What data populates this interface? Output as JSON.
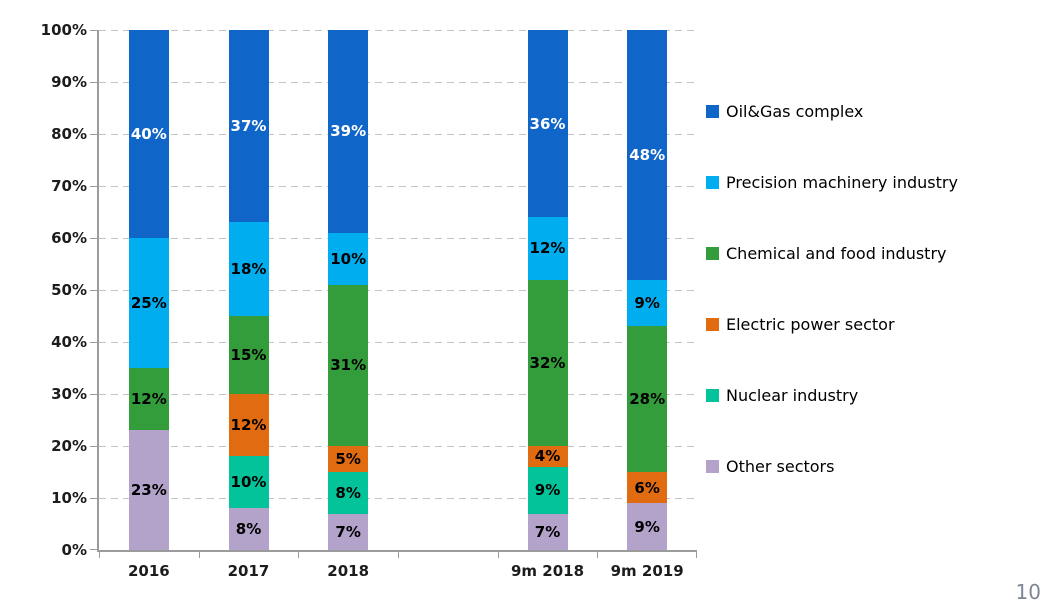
{
  "page_number": "10",
  "chart_data": {
    "type": "bar",
    "stacked": true,
    "title": "",
    "legend_position": "right",
    "grid": "dashed-horizontal",
    "categories": [
      "2016",
      "2017",
      "2018",
      "",
      "9m 2018",
      "9m 2019"
    ],
    "y_axis": {
      "min": 0,
      "max": 100,
      "tick_step": 10,
      "ticks": [
        "0%",
        "10%",
        "20%",
        "30%",
        "40%",
        "50%",
        "60%",
        "70%",
        "80%",
        "90%",
        "100%"
      ]
    },
    "data_label_suffix": "%",
    "series": [
      {
        "name": "Oil&Gas complex",
        "color": "#1065C8",
        "label_color": "#FFFFFF",
        "values": [
          40,
          37,
          39,
          null,
          36,
          48
        ]
      },
      {
        "name": "Precision machinery industry",
        "color": "#00AEEF",
        "label_color": "#000000",
        "values": [
          25,
          18,
          10,
          null,
          12,
          9
        ]
      },
      {
        "name": "Chemical and food industry",
        "color": "#339C3B",
        "label_color": "#000000",
        "values": [
          12,
          15,
          31,
          null,
          32,
          28
        ]
      },
      {
        "name": "Electric power sector",
        "color": "#E16B10",
        "label_color": "#000000",
        "values": [
          0,
          12,
          5,
          null,
          4,
          6
        ]
      },
      {
        "name": "Nuclear industry",
        "color": "#02C39A",
        "label_color": "#000000",
        "values": [
          0,
          10,
          8,
          null,
          9,
          0
        ]
      },
      {
        "name": "Other sectors",
        "color": "#B3A2C9",
        "label_color": "#000000",
        "values": [
          23,
          8,
          7,
          null,
          7,
          9
        ]
      }
    ],
    "stack_order_bottom_to_top": [
      "Other sectors",
      "Nuclear industry",
      "Electric power sector",
      "Chemical and food industry",
      "Precision machinery industry",
      "Oil&Gas complex"
    ],
    "axis_color": "#9b9b9b",
    "gridline_color": "#c4c4c4"
  }
}
